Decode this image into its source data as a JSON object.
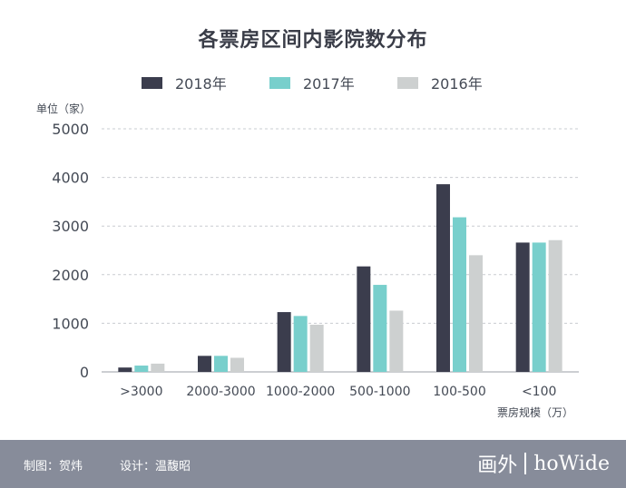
{
  "header": {
    "title": "各票房区间内影院数分布"
  },
  "legend": [
    {
      "label": "2018年",
      "color": "#3b3d4d"
    },
    {
      "label": "2017年",
      "color": "#78cfcc"
    },
    {
      "label": "2016年",
      "color": "#cdd0d0"
    }
  ],
  "axis": {
    "y_unit": "单位（家）",
    "x_unit": "票房规模（万）"
  },
  "footer": {
    "credit_map": "制图：贺炜",
    "credit_design": "设计：温馥昭",
    "logo_cn": "画外",
    "logo_en": "hoWide"
  },
  "chart_data": {
    "type": "bar",
    "title": "各票房区间内影院数分布",
    "xlabel": "票房规模（万）",
    "ylabel": "单位（家）",
    "ylim": [
      0,
      5000
    ],
    "yticks": [
      0,
      1000,
      2000,
      3000,
      4000,
      5000
    ],
    "grid": true,
    "legend_position": "top",
    "categories": [
      ">3000",
      "2000-3000",
      "1000-2000",
      "500-1000",
      "100-500",
      "<100"
    ],
    "series": [
      {
        "name": "2018年",
        "color": "#3b3d4d",
        "values": [
          90,
          330,
          1230,
          2170,
          3860,
          2660
        ]
      },
      {
        "name": "2017年",
        "color": "#78cfcc",
        "values": [
          130,
          330,
          1150,
          1790,
          3180,
          2660
        ]
      },
      {
        "name": "2016年",
        "color": "#cdd0d0",
        "values": [
          170,
          290,
          970,
          1260,
          2400,
          2710
        ]
      }
    ]
  }
}
